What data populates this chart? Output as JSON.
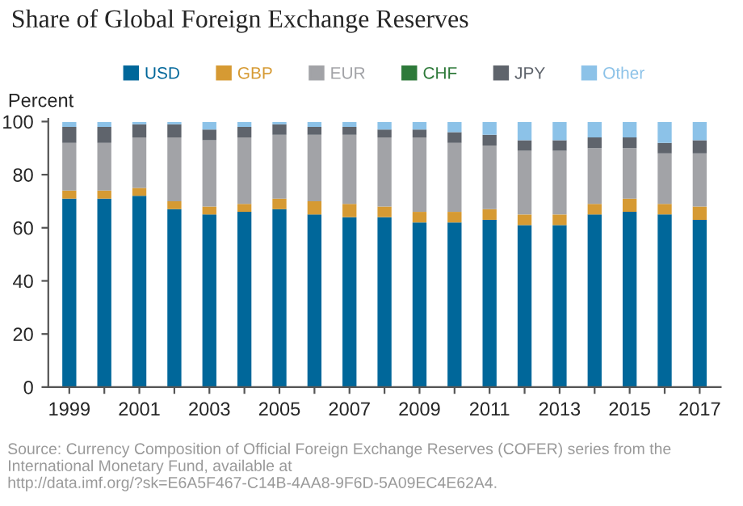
{
  "chart_data": {
    "type": "bar",
    "stacked": true,
    "title": "Share of Global Foreign Exchange Reserves",
    "ylabel": "Percent",
    "categories": [
      "1999",
      null,
      "2001",
      null,
      "2003",
      null,
      "2005",
      null,
      "2007",
      null,
      "2009",
      null,
      "2011",
      null,
      "2013",
      null,
      "2015",
      null,
      "2017"
    ],
    "series": [
      {
        "name": "USD",
        "color": "#00679a",
        "values": [
          71,
          71,
          72,
          67,
          65,
          66,
          67,
          65,
          64,
          64,
          62,
          62,
          63,
          61,
          61,
          65,
          66,
          65,
          63
        ]
      },
      {
        "name": "GBP",
        "color": "#d69a33",
        "values": [
          3,
          3,
          3,
          3,
          3,
          3,
          4,
          5,
          5,
          4,
          4,
          4,
          4,
          4,
          4,
          4,
          5,
          4,
          5
        ]
      },
      {
        "name": "EUR",
        "color": "#a2a3a7",
        "values": [
          18,
          18,
          19,
          24,
          25,
          25,
          24,
          25,
          26,
          26,
          28,
          26,
          24,
          24,
          24,
          21,
          19,
          19,
          20
        ]
      },
      {
        "name": "CHF",
        "color": "#2e7a3a",
        "values": [
          null,
          null,
          null,
          null,
          null,
          null,
          null,
          null,
          null,
          null,
          null,
          null,
          null,
          null,
          null,
          null,
          null,
          null,
          null
        ]
      },
      {
        "name": "JPY",
        "color": "#5f646c",
        "values": [
          6,
          6,
          5,
          5,
          4,
          4,
          4,
          3,
          3,
          3,
          3,
          4,
          4,
          4,
          4,
          4,
          4,
          4,
          5
        ]
      },
      {
        "name": "Other",
        "color": "#8cc2e8",
        "values": [
          1.8,
          1.8,
          0.8,
          0.8,
          2.8,
          1.8,
          0.8,
          1.8,
          1.8,
          2.8,
          2.8,
          3.8,
          4.8,
          6.8,
          6.8,
          5.8,
          5.8,
          7.8,
          6.8
        ]
      }
    ],
    "ylim": [
      0,
      101
    ],
    "yticks": [
      0,
      20,
      40,
      60,
      80,
      100
    ],
    "grid": false,
    "legend": "top",
    "annotations": [
      "Source: Currency Composition of Official Foreign Exchange Reserves (COFER) series from the International Monetary Fund, available at http://data.imf.org/?sk=E6A5F467-C14B-4AA8-9F6D-5A09EC4E62A4."
    ]
  }
}
